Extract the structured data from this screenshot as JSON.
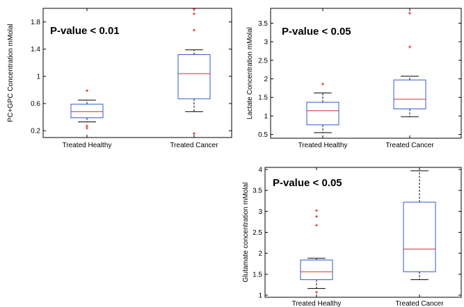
{
  "colors": {
    "box": "#3355cc",
    "median": "#cc3333",
    "outlier": "#dd2222",
    "whisker": "#000000",
    "axis": "#000000"
  },
  "chart_data": [
    {
      "type": "box",
      "categories": [
        "Treated Healthy",
        "Treated Cancer"
      ],
      "ylabel": "PC+GPC Concentration mMolal",
      "annotation": "P-value < 0.01",
      "ylim": [
        0.1,
        2.0
      ],
      "yticks": [
        {
          "v": 0.2,
          "t": "0.2"
        },
        {
          "v": 0.6,
          "t": "0.6"
        },
        {
          "v": 1.0,
          "t": "1"
        },
        {
          "v": 1.4,
          "t": "1.4"
        },
        {
          "v": 1.8,
          "t": "1.8"
        }
      ],
      "boxes": [
        {
          "min": 0.33,
          "q1": 0.39,
          "median": 0.48,
          "q3": 0.59,
          "max": 0.65,
          "outliers": [
            0.79,
            0.27,
            0.24
          ]
        },
        {
          "min": 0.48,
          "q1": 0.67,
          "median": 1.04,
          "q3": 1.32,
          "max": 1.39,
          "outliers": [
            1.99,
            1.92,
            1.68,
            0.16
          ]
        }
      ]
    },
    {
      "type": "box",
      "categories": [
        "Treated Healthy",
        "Treated Cancer"
      ],
      "ylabel": "Lactate Concentration mMolal",
      "annotation": "P-value < 0.05",
      "ylim": [
        0.4,
        3.9
      ],
      "yticks": [
        {
          "v": 0.5,
          "t": "0.5"
        },
        {
          "v": 1.0,
          "t": "1"
        },
        {
          "v": 1.5,
          "t": "1.5"
        },
        {
          "v": 2.0,
          "t": "2"
        },
        {
          "v": 2.5,
          "t": "2.5"
        },
        {
          "v": 3.0,
          "t": "3"
        },
        {
          "v": 3.5,
          "t": "3.5"
        }
      ],
      "boxes": [
        {
          "min": 0.55,
          "q1": 0.76,
          "median": 1.14,
          "q3": 1.37,
          "max": 1.62,
          "outliers": [
            1.86
          ]
        },
        {
          "min": 0.98,
          "q1": 1.19,
          "median": 1.45,
          "q3": 1.97,
          "max": 2.07,
          "outliers": [
            3.77,
            2.86
          ]
        }
      ]
    },
    {
      "type": "box",
      "categories": [
        "Treated Healthy",
        "Treated Cancer"
      ],
      "ylabel": "Glutamate concentration mMolal",
      "annotation": "P-value < 0.05",
      "ylim": [
        0.95,
        4.05
      ],
      "yticks": [
        {
          "v": 1.0,
          "t": "1"
        },
        {
          "v": 1.5,
          "t": "1.5"
        },
        {
          "v": 2.0,
          "t": "2"
        },
        {
          "v": 2.5,
          "t": "2.5"
        },
        {
          "v": 3.0,
          "t": "3"
        },
        {
          "v": 3.5,
          "t": "3.5"
        },
        {
          "v": 4.0,
          "t": "4"
        }
      ],
      "boxes": [
        {
          "min": 1.16,
          "q1": 1.37,
          "median": 1.56,
          "q3": 1.84,
          "max": 1.88,
          "outliers": [
            3.02,
            2.88,
            2.67,
            1.07
          ]
        },
        {
          "min": 1.37,
          "q1": 1.56,
          "median": 2.1,
          "q3": 3.22,
          "max": 3.97,
          "outliers": []
        }
      ]
    }
  ]
}
